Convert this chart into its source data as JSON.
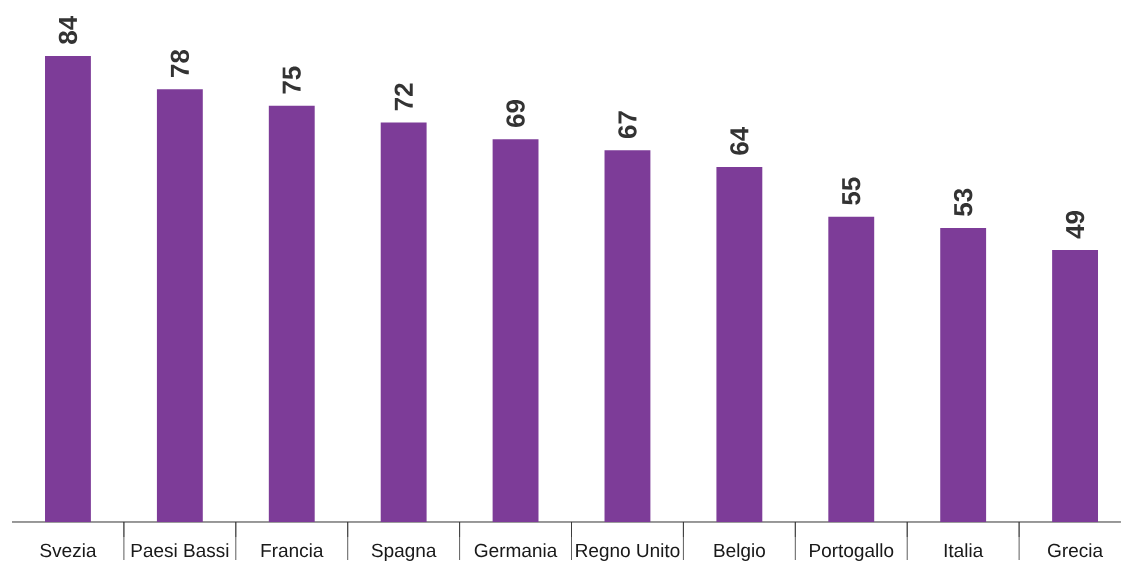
{
  "chart_data": {
    "type": "bar",
    "categories": [
      "Svezia",
      "Paesi Bassi",
      "Francia",
      "Spagna",
      "Germania",
      "Regno Unito",
      "Belgio",
      "Portogallo",
      "Italia",
      "Grecia"
    ],
    "values": [
      84,
      78,
      75,
      72,
      69,
      67,
      64,
      55,
      53,
      49
    ],
    "color": "#7d3c98",
    "data_labels": true
  }
}
